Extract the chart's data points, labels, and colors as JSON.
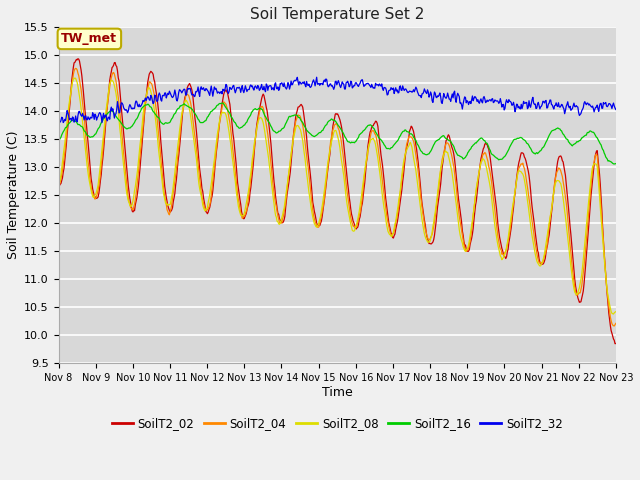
{
  "title": "Soil Temperature Set 2",
  "xlabel": "Time",
  "ylabel": "Soil Temperature (C)",
  "ylim": [
    9.5,
    15.5
  ],
  "fig_bg": "#f0f0f0",
  "plot_bg": "#d8d8d8",
  "grid_color": "#ffffff",
  "annotation_text": "TW_met",
  "annotation_fg": "#990000",
  "annotation_bg": "#ffffcc",
  "annotation_border": "#bbaa00",
  "colors": {
    "S02": "#cc0000",
    "S04": "#ff8800",
    "S08": "#dddd00",
    "S16": "#00cc00",
    "S32": "#0000ee"
  },
  "x_tick_labels": [
    "Nov 8",
    "Nov 9",
    "Nov 10",
    "Nov 11",
    "Nov 12",
    "Nov 13",
    "Nov 14",
    "Nov 15",
    "Nov 16",
    "Nov 17",
    "Nov 18",
    "Nov 19",
    "Nov 20",
    "Nov 21",
    "Nov 22",
    "Nov 23"
  ],
  "yticks": [
    9.5,
    10.0,
    10.5,
    11.0,
    11.5,
    12.0,
    12.5,
    13.0,
    13.5,
    14.0,
    14.5,
    15.0,
    15.5
  ],
  "legend_labels": [
    "SoilT2_02",
    "SoilT2_04",
    "SoilT2_08",
    "SoilT2_16",
    "SoilT2_32"
  ]
}
